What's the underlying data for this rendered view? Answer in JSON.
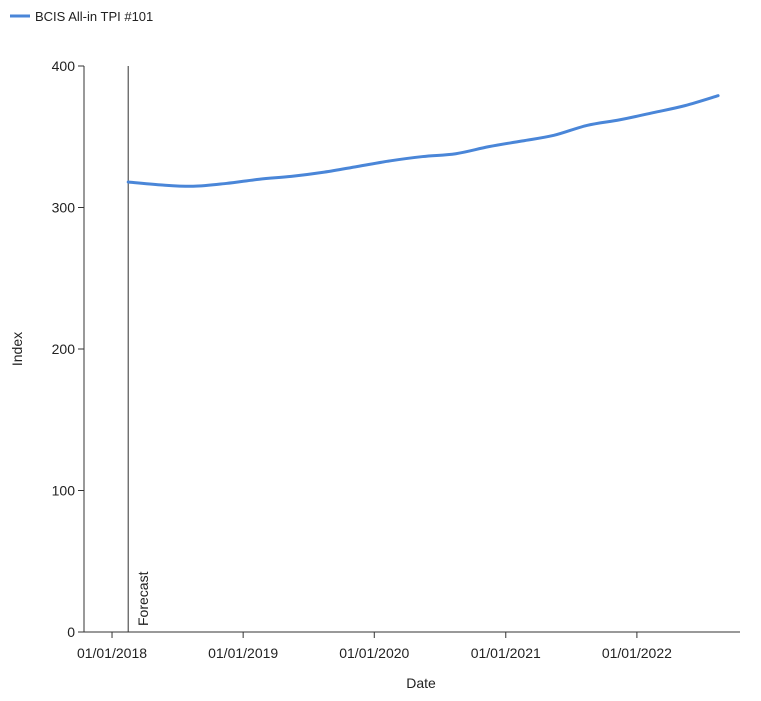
{
  "chart_data": {
    "type": "line",
    "title": "",
    "xlabel": "Date",
    "ylabel": "Index",
    "ylim": [
      0,
      400
    ],
    "xlim": [
      "2017-10-15",
      "2022-10-15"
    ],
    "x_ticks": [
      {
        "date": "2018-01-01",
        "label": "01/01/2018"
      },
      {
        "date": "2019-01-01",
        "label": "01/01/2019"
      },
      {
        "date": "2020-01-01",
        "label": "01/01/2020"
      },
      {
        "date": "2021-01-01",
        "label": "01/01/2021"
      },
      {
        "date": "2022-01-01",
        "label": "01/01/2022"
      }
    ],
    "y_ticks": [
      0,
      100,
      200,
      300,
      400
    ],
    "grid": false,
    "legend": {
      "position": "top-left",
      "entries": [
        {
          "name": "BCIS All-in TPI #101",
          "color": "#4a86d8"
        }
      ]
    },
    "annotations": [
      {
        "type": "vline",
        "date": "2018-02-15",
        "label": "Forecast",
        "color": "#333333"
      }
    ],
    "series": [
      {
        "name": "BCIS All-in TPI #101",
        "color": "#4a86d8",
        "points": [
          {
            "date": "2018-02-15",
            "value": 318
          },
          {
            "date": "2018-05-15",
            "value": 316
          },
          {
            "date": "2018-08-15",
            "value": 315
          },
          {
            "date": "2018-11-15",
            "value": 317
          },
          {
            "date": "2019-02-15",
            "value": 320
          },
          {
            "date": "2019-05-15",
            "value": 322
          },
          {
            "date": "2019-08-15",
            "value": 325
          },
          {
            "date": "2019-11-15",
            "value": 329
          },
          {
            "date": "2020-02-15",
            "value": 333
          },
          {
            "date": "2020-05-15",
            "value": 336
          },
          {
            "date": "2020-08-15",
            "value": 338
          },
          {
            "date": "2020-11-15",
            "value": 343
          },
          {
            "date": "2021-02-15",
            "value": 347
          },
          {
            "date": "2021-05-15",
            "value": 351
          },
          {
            "date": "2021-08-15",
            "value": 358
          },
          {
            "date": "2021-11-15",
            "value": 362
          },
          {
            "date": "2022-02-15",
            "value": 367
          },
          {
            "date": "2022-05-15",
            "value": 372
          },
          {
            "date": "2022-08-15",
            "value": 379
          }
        ]
      }
    ]
  }
}
